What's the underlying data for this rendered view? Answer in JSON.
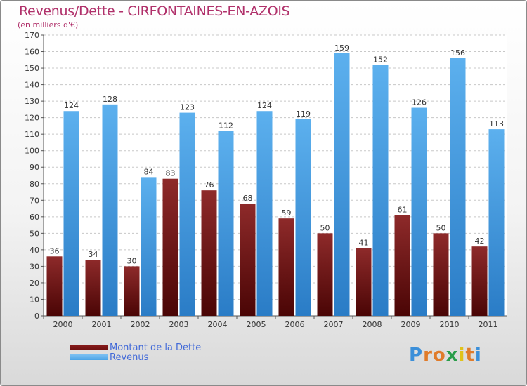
{
  "title": "Revenus/Dette - CIRFONTAINES-EN-AZOIS",
  "subtitle": "(en milliers d'€)",
  "colors": {
    "dette": "#7a1a1a",
    "revenus": "#4aa3e6",
    "title": "#b0306a",
    "legend_text": "#4169d8"
  },
  "legend": [
    {
      "label": "Montant de la Dette",
      "color": "#6b0f0f"
    },
    {
      "label": "Revenus",
      "color": "#4aa3e6"
    }
  ],
  "logo": {
    "text": "Proxiti"
  },
  "chart_data": {
    "type": "bar",
    "title": "Revenus/Dette - CIRFONTAINES-EN-AZOIS",
    "subtitle": "(en milliers d'€)",
    "categories": [
      "2000",
      "2001",
      "2002",
      "2003",
      "2004",
      "2005",
      "2006",
      "2007",
      "2008",
      "2009",
      "2010",
      "2011"
    ],
    "series": [
      {
        "name": "Montant de la Dette",
        "values": [
          36,
          34,
          30,
          83,
          76,
          68,
          59,
          50,
          41,
          61,
          50,
          42
        ]
      },
      {
        "name": "Revenus",
        "values": [
          124,
          128,
          84,
          123,
          112,
          124,
          119,
          159,
          152,
          126,
          156,
          113
        ]
      }
    ],
    "ylim": [
      0,
      170
    ],
    "yticks": [
      0,
      10,
      20,
      30,
      40,
      50,
      60,
      70,
      80,
      90,
      100,
      110,
      120,
      130,
      140,
      150,
      160,
      170
    ],
    "grid": true,
    "legend_position": "bottom-left"
  }
}
